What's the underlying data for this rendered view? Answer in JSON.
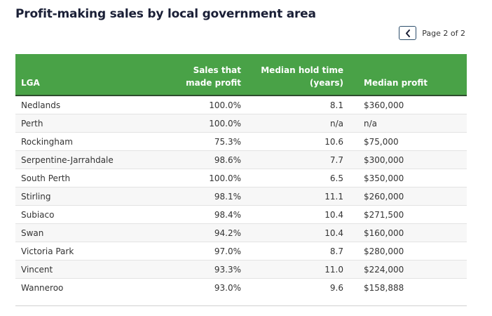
{
  "title": "Profit-making sales by local government area",
  "pagination": {
    "label": "Page 2 of 2"
  },
  "table": {
    "headers": {
      "lga": "LGA",
      "sales_line1": "Sales that",
      "sales_line2": "made profit",
      "hold_line1": "Median hold time",
      "hold_line2": "(years)",
      "profit": "Median profit"
    },
    "rows": [
      {
        "lga": "Nedlands",
        "sales": "100.0%",
        "hold": "8.1",
        "profit": "$360,000"
      },
      {
        "lga": "Perth",
        "sales": "100.0%",
        "hold": "n/a",
        "profit": "n/a"
      },
      {
        "lga": "Rockingham",
        "sales": "75.3%",
        "hold": "10.6",
        "profit": "$75,000"
      },
      {
        "lga": "Serpentine-Jarrahdale",
        "sales": "98.6%",
        "hold": "7.7",
        "profit": "$300,000"
      },
      {
        "lga": "South Perth",
        "sales": "100.0%",
        "hold": "6.5",
        "profit": "$350,000"
      },
      {
        "lga": "Stirling",
        "sales": "98.1%",
        "hold": "11.1",
        "profit": "$260,000"
      },
      {
        "lga": "Subiaco",
        "sales": "98.4%",
        "hold": "10.4",
        "profit": "$271,500"
      },
      {
        "lga": "Swan",
        "sales": "94.2%",
        "hold": "10.4",
        "profit": "$160,000"
      },
      {
        "lga": "Victoria Park",
        "sales": "97.0%",
        "hold": "8.7",
        "profit": "$280,000"
      },
      {
        "lga": "Vincent",
        "sales": "93.3%",
        "hold": "11.0",
        "profit": "$224,000"
      },
      {
        "lga": "Wanneroo",
        "sales": "93.0%",
        "hold": "9.6",
        "profit": "$158,888"
      }
    ]
  },
  "icons": {
    "prev": "chevron-left-icon"
  },
  "colors": {
    "header_bg": "#49a247",
    "header_text": "#ffffff",
    "title_text": "#1a1f36",
    "pager_border": "#2c4d6b"
  }
}
